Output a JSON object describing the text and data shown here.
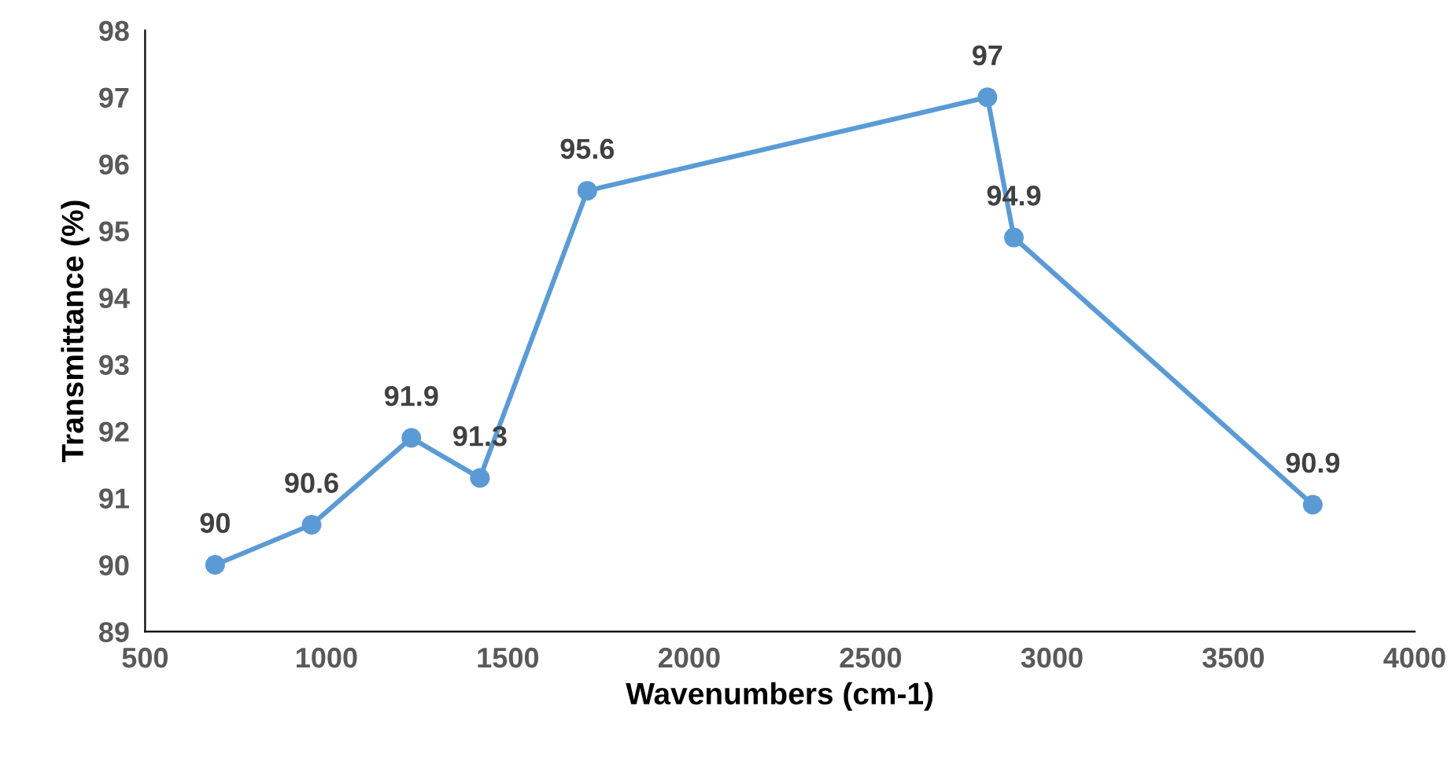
{
  "chart_data": {
    "type": "line",
    "xlabel": "Wavenumbers (cm-1)",
    "ylabel": "Transmittance (%)",
    "x": [
      693,
      959,
      1234,
      1423,
      1719,
      2822,
      2895,
      3719
    ],
    "series": [
      {
        "color": "#5b9bd5",
        "values": [
          90,
          90.6,
          91.9,
          91.3,
          95.6,
          97,
          94.9,
          90.9
        ]
      }
    ],
    "xlim": [
      500,
      4000
    ],
    "xticks": [
      500,
      1000,
      1500,
      2000,
      2500,
      3000,
      3500,
      4000
    ],
    "ylim": [
      89,
      98
    ],
    "yticks": [
      89,
      90,
      91,
      92,
      93,
      94,
      95,
      96,
      97,
      98
    ],
    "data_labels": true,
    "grid": false,
    "legend": false,
    "marker": "circle",
    "line_style": "solid"
  }
}
